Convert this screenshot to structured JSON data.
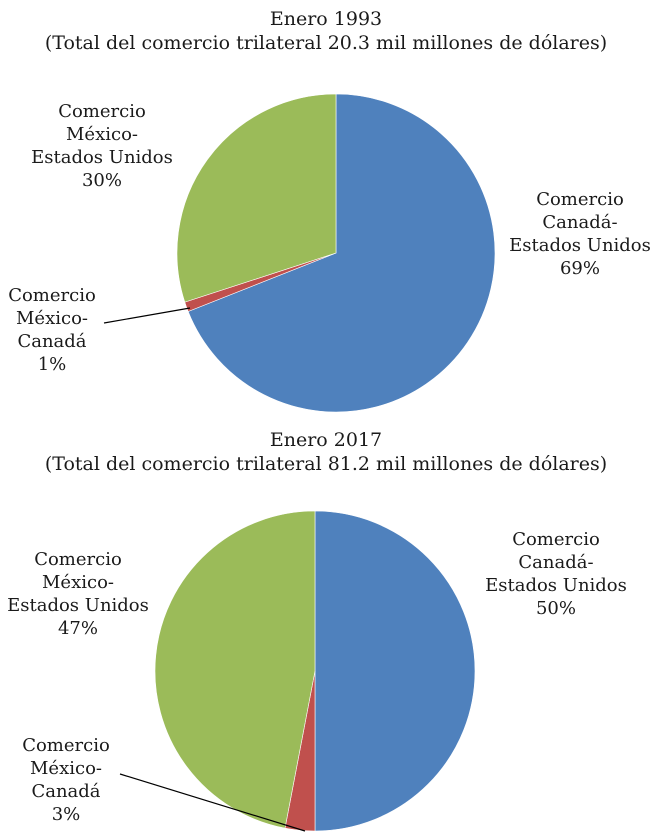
{
  "colors": {
    "canada_us": "#4F81BD",
    "mexico_canada": "#C0504D",
    "mexico_us": "#9BBB59"
  },
  "chart_data": [
    {
      "type": "pie",
      "title": "Enero 1993",
      "subtitle": "(Total del comercio trilateral 20.3 mil millones de dólares)",
      "slices": [
        {
          "label_lines": [
            "Comercio",
            "Canadá-",
            "Estados Unidos"
          ],
          "value": 69,
          "pct_label": "69%",
          "color_key": "canada_us"
        },
        {
          "label_lines": [
            "Comercio",
            "México-",
            "Canadá"
          ],
          "value": 1,
          "pct_label": "1%",
          "color_key": "mexico_canada"
        },
        {
          "label_lines": [
            "Comercio",
            "México-",
            "Estados Unidos"
          ],
          "value": 30,
          "pct_label": "30%",
          "color_key": "mexico_us"
        }
      ]
    },
    {
      "type": "pie",
      "title": "Enero 2017",
      "subtitle": "(Total del comercio trilateral 81.2 mil millones de dólares)",
      "slices": [
        {
          "label_lines": [
            "Comercio",
            "Canadá-",
            "Estados Unidos"
          ],
          "value": 50,
          "pct_label": "50%",
          "color_key": "canada_us"
        },
        {
          "label_lines": [
            "Comercio",
            "México-",
            "Canadá"
          ],
          "value": 3,
          "pct_label": "3%",
          "color_key": "mexico_canada"
        },
        {
          "label_lines": [
            "Comercio",
            "México-",
            "Estados Unidos"
          ],
          "value": 47,
          "pct_label": "47%",
          "color_key": "mexico_us"
        }
      ]
    }
  ]
}
